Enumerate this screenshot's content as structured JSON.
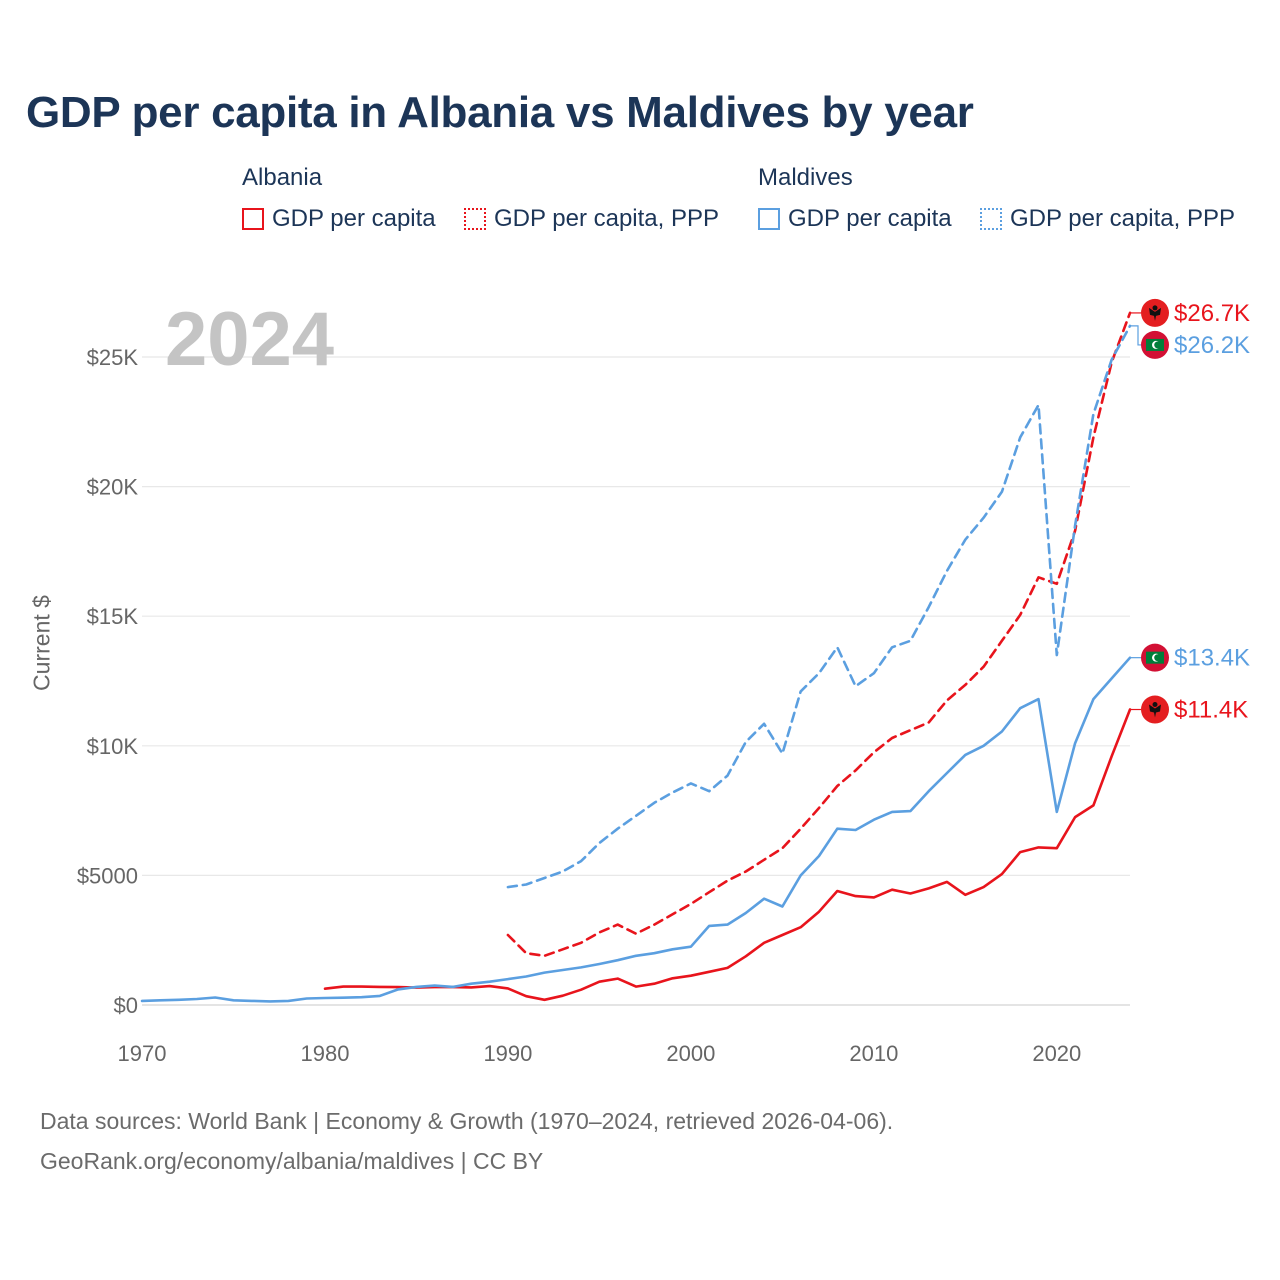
{
  "title": "GDP per capita in Albania vs Maldives by year",
  "year_watermark": "2024",
  "legend": {
    "groups": [
      {
        "country": "Albania",
        "color": "#e8141c",
        "items": [
          {
            "label": "GDP per capita",
            "style": "solid"
          },
          {
            "label": "GDP per capita, PPP",
            "style": "dotted"
          }
        ]
      },
      {
        "country": "Maldives",
        "color": "#5b9fe0",
        "items": [
          {
            "label": "GDP per capita",
            "style": "solid"
          },
          {
            "label": "GDP per capita, PPP",
            "style": "dotted"
          }
        ]
      }
    ]
  },
  "chart_data": {
    "type": "line",
    "ylabel": "Current $",
    "xlabel": "",
    "xlim": [
      1970,
      2024
    ],
    "ylim": [
      0,
      27000
    ],
    "x_ticks": [
      1970,
      1980,
      1990,
      2000,
      2010,
      2020
    ],
    "y_ticks": [
      {
        "value": 0,
        "label": "$0"
      },
      {
        "value": 5000,
        "label": "$5000"
      },
      {
        "value": 10000,
        "label": "$10K"
      },
      {
        "value": 15000,
        "label": "$15K"
      },
      {
        "value": 20000,
        "label": "$20K"
      },
      {
        "value": 25000,
        "label": "$25K"
      }
    ],
    "grid": true,
    "series": [
      {
        "name": "Albania GDP per capita",
        "country": "Albania",
        "color": "#e8141c",
        "dash": false,
        "end_label": "$11.4K",
        "flag": "albania",
        "x": [
          1980,
          1981,
          1982,
          1983,
          1984,
          1985,
          1986,
          1987,
          1988,
          1989,
          1990,
          1991,
          1992,
          1993,
          1994,
          1995,
          1996,
          1997,
          1998,
          1999,
          2000,
          2001,
          2002,
          2003,
          2004,
          2005,
          2006,
          2007,
          2008,
          2009,
          2010,
          2011,
          2012,
          2013,
          2014,
          2015,
          2016,
          2017,
          2018,
          2019,
          2020,
          2021,
          2022,
          2023,
          2024
        ],
        "values": [
          630,
          710,
          710,
          700,
          690,
          670,
          690,
          690,
          680,
          730,
          640,
          340,
          200,
          360,
          590,
          900,
          1020,
          710,
          820,
          1030,
          1130,
          1280,
          1430,
          1880,
          2400,
          2700,
          3000,
          3600,
          4400,
          4200,
          4150,
          4450,
          4300,
          4500,
          4750,
          4250,
          4550,
          5050,
          5900,
          6080,
          6050,
          7250,
          7700,
          9600,
          11400
        ]
      },
      {
        "name": "Albania GDP per capita, PPP",
        "country": "Albania",
        "color": "#e8141c",
        "dash": true,
        "end_label": "$26.7K",
        "flag": "albania",
        "x": [
          1990,
          1991,
          1992,
          1993,
          1994,
          1995,
          1996,
          1997,
          1998,
          1999,
          2000,
          2001,
          2002,
          2003,
          2004,
          2005,
          2006,
          2007,
          2008,
          2009,
          2010,
          2011,
          2012,
          2013,
          2014,
          2015,
          2016,
          2017,
          2018,
          2019,
          2020,
          2021,
          2022,
          2023,
          2024
        ],
        "values": [
          2700,
          2000,
          1900,
          2150,
          2400,
          2800,
          3100,
          2750,
          3100,
          3500,
          3900,
          4350,
          4800,
          5150,
          5600,
          6050,
          6800,
          7600,
          8450,
          9050,
          9750,
          10300,
          10600,
          10900,
          11750,
          12350,
          13050,
          14050,
          15050,
          16500,
          16250,
          18300,
          21900,
          24800,
          26700
        ]
      },
      {
        "name": "Maldives GDP per capita",
        "country": "Maldives",
        "color": "#5b9fe0",
        "dash": false,
        "end_label": "$13.4K",
        "flag": "maldives",
        "x": [
          1970,
          1971,
          1972,
          1973,
          1974,
          1975,
          1976,
          1977,
          1978,
          1979,
          1980,
          1981,
          1982,
          1983,
          1984,
          1985,
          1986,
          1987,
          1988,
          1989,
          1990,
          1991,
          1992,
          1993,
          1994,
          1995,
          1996,
          1997,
          1998,
          1999,
          2000,
          2001,
          2002,
          2003,
          2004,
          2005,
          2006,
          2007,
          2008,
          2009,
          2010,
          2011,
          2012,
          2013,
          2014,
          2015,
          2016,
          2017,
          2018,
          2019,
          2020,
          2021,
          2022,
          2023,
          2024
        ],
        "values": [
          160,
          180,
          200,
          230,
          290,
          180,
          160,
          140,
          160,
          250,
          270,
          280,
          300,
          350,
          600,
          700,
          750,
          700,
          820,
          900,
          1000,
          1100,
          1250,
          1350,
          1450,
          1580,
          1730,
          1900,
          2000,
          2150,
          2250,
          3050,
          3100,
          3550,
          4100,
          3800,
          5000,
          5750,
          6800,
          6750,
          7150,
          7450,
          7480,
          8250,
          8950,
          9650,
          10000,
          10550,
          11450,
          11800,
          7450,
          10100,
          11800,
          12600,
          13400
        ]
      },
      {
        "name": "Maldives GDP per capita, PPP",
        "country": "Maldives",
        "color": "#5b9fe0",
        "dash": true,
        "end_label": "$26.2K",
        "flag": "maldives",
        "x": [
          1990,
          1991,
          1992,
          1993,
          1994,
          1995,
          1996,
          1997,
          1998,
          1999,
          2000,
          2001,
          2002,
          2003,
          2004,
          2005,
          2006,
          2007,
          2008,
          2009,
          2010,
          2011,
          2012,
          2013,
          2014,
          2015,
          2016,
          2017,
          2018,
          2019,
          2020,
          2021,
          2022,
          2023,
          2024
        ],
        "values": [
          4550,
          4650,
          4900,
          5150,
          5550,
          6250,
          6800,
          7300,
          7800,
          8200,
          8550,
          8250,
          8850,
          10150,
          10850,
          9700,
          12100,
          12800,
          13800,
          12300,
          12800,
          13800,
          14050,
          15350,
          16750,
          17950,
          18800,
          19800,
          21900,
          23150,
          13500,
          18500,
          22800,
          24900,
          26200
        ]
      }
    ]
  },
  "footer": {
    "line1": "Data sources: World Bank | Economy & Growth (1970–2024, retrieved 2026-04-06).",
    "line2": "GeoRank.org/economy/albania/maldives | CC BY"
  }
}
